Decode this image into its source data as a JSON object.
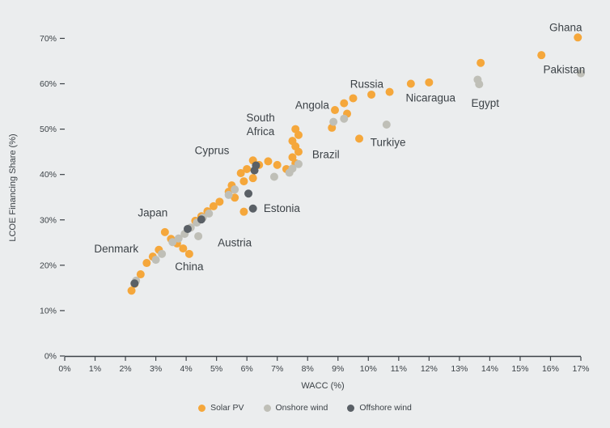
{
  "colors": {
    "background": "#EBEDEE",
    "text": "#3C4247",
    "axis": "#3C4247",
    "solar_pv": "#F5A73B",
    "onshore_wind": "#BFBFB7",
    "offshore_wind": "#5A6066"
  },
  "chart_data": {
    "type": "scatter",
    "title": "",
    "xlabel": "WACC (%)",
    "ylabel": "LCOE Financing Share (%)",
    "xlim": [
      0,
      17
    ],
    "ylim": [
      0,
      74
    ],
    "grid": false,
    "legend_position": "bottom",
    "x_ticks": [
      [
        0,
        "0%"
      ],
      [
        1,
        "1%"
      ],
      [
        2,
        "2%"
      ],
      [
        3,
        "3%"
      ],
      [
        4,
        "4%"
      ],
      [
        5,
        "5%"
      ],
      [
        6,
        "6%"
      ],
      [
        7,
        "7%"
      ],
      [
        8,
        "8%"
      ],
      [
        9,
        "9%"
      ],
      [
        10,
        "10%"
      ],
      [
        11,
        "11%"
      ],
      [
        12,
        "12%"
      ],
      [
        13,
        "13%"
      ],
      [
        14,
        "14%"
      ],
      [
        15,
        "15%"
      ],
      [
        16,
        "16%"
      ],
      [
        17,
        "17%"
      ]
    ],
    "y_ticks": [
      [
        0,
        "0%"
      ],
      [
        10,
        "10%"
      ],
      [
        20,
        "20%"
      ],
      [
        30,
        "30%"
      ],
      [
        40,
        "40%"
      ],
      [
        50,
        "50%"
      ],
      [
        60,
        "60%"
      ],
      [
        70,
        "70%"
      ]
    ],
    "series": [
      {
        "name": "Solar PV",
        "color": "#F5A73B",
        "points": [
          [
            2.2,
            14.4
          ],
          [
            2.3,
            15.9
          ],
          [
            2.5,
            18.0
          ],
          [
            2.7,
            20.5
          ],
          [
            2.9,
            21.9
          ],
          [
            3.1,
            23.4
          ],
          [
            3.3,
            27.3
          ],
          [
            3.5,
            25.8
          ],
          [
            3.7,
            24.8
          ],
          [
            3.9,
            23.7
          ],
          [
            4.1,
            22.5
          ],
          [
            4.3,
            29.8
          ],
          [
            4.5,
            30.8
          ],
          [
            4.7,
            31.9
          ],
          [
            4.9,
            33.0
          ],
          [
            5.1,
            34.0
          ],
          [
            5.4,
            36.2
          ],
          [
            5.5,
            37.6
          ],
          [
            5.6,
            34.9
          ],
          [
            5.8,
            40.3
          ],
          [
            5.9,
            31.8
          ],
          [
            5.9,
            38.5
          ],
          [
            6.0,
            41.2
          ],
          [
            6.2,
            39.2
          ],
          [
            6.2,
            43.1
          ],
          [
            6.4,
            42.1
          ],
          [
            6.7,
            42.9
          ],
          [
            7.0,
            42.1
          ],
          [
            7.3,
            41.2
          ],
          [
            7.5,
            43.8
          ],
          [
            7.5,
            47.4
          ],
          [
            7.6,
            42.5
          ],
          [
            7.6,
            46.2
          ],
          [
            7.6,
            50.0
          ],
          [
            7.7,
            45.0
          ],
          [
            7.7,
            48.7
          ],
          [
            8.8,
            50.3
          ],
          [
            8.9,
            54.2
          ],
          [
            9.2,
            55.7
          ],
          [
            9.3,
            53.4
          ],
          [
            9.5,
            56.8
          ],
          [
            9.7,
            47.9
          ],
          [
            10.1,
            57.6
          ],
          [
            10.7,
            58.2
          ],
          [
            11.4,
            60.0
          ],
          [
            12.0,
            60.3
          ],
          [
            13.7,
            64.6
          ],
          [
            15.7,
            66.3
          ],
          [
            16.9,
            70.2
          ]
        ]
      },
      {
        "name": "Onshore wind",
        "color": "#BFBFB7",
        "points": [
          [
            2.35,
            16.6
          ],
          [
            3.0,
            21.2
          ],
          [
            3.2,
            22.5
          ],
          [
            3.55,
            25.1
          ],
          [
            3.75,
            25.9
          ],
          [
            3.95,
            26.9
          ],
          [
            4.15,
            28.3
          ],
          [
            4.35,
            29.4
          ],
          [
            4.4,
            26.4
          ],
          [
            4.55,
            30.5
          ],
          [
            4.75,
            31.4
          ],
          [
            5.4,
            35.5
          ],
          [
            5.6,
            36.7
          ],
          [
            6.9,
            39.5
          ],
          [
            7.4,
            40.4
          ],
          [
            7.5,
            41.3
          ],
          [
            7.7,
            42.3
          ],
          [
            8.85,
            51.6
          ],
          [
            9.2,
            52.3
          ],
          [
            10.6,
            51.0
          ],
          [
            13.6,
            60.9
          ],
          [
            13.65,
            59.9
          ],
          [
            17.0,
            62.3
          ]
        ]
      },
      {
        "name": "Offshore wind",
        "color": "#5A6066",
        "points": [
          [
            2.3,
            16.0
          ],
          [
            4.05,
            28.0
          ],
          [
            4.5,
            30.1
          ],
          [
            6.05,
            35.8
          ],
          [
            6.2,
            32.5
          ],
          [
            6.25,
            40.9
          ],
          [
            6.3,
            42.0
          ]
        ]
      }
    ],
    "annotations": [
      {
        "label": "Ghana",
        "x": 16.5,
        "y": 72.4
      },
      {
        "label": "Pakistan",
        "x": 16.45,
        "y": 63.1
      },
      {
        "label": "Egypt",
        "x": 13.85,
        "y": 55.7
      },
      {
        "label": "Nicaragua",
        "x": 12.05,
        "y": 56.9
      },
      {
        "label": "Russia",
        "x": 9.95,
        "y": 59.9
      },
      {
        "label": "Angola",
        "x": 8.15,
        "y": 55.3
      },
      {
        "label": "Turkiye",
        "x": 10.65,
        "y": 47.1
      },
      {
        "label": "Brazil",
        "x": 8.6,
        "y": 44.4
      },
      {
        "label": "South\nAfrica",
        "x": 6.45,
        "y": 51.0
      },
      {
        "label": "Cyprus",
        "x": 4.85,
        "y": 45.3
      },
      {
        "label": "Estonia",
        "x": 7.15,
        "y": 32.5
      },
      {
        "label": "Japan",
        "x": 2.9,
        "y": 31.6
      },
      {
        "label": "Austria",
        "x": 5.6,
        "y": 25.0
      },
      {
        "label": "Denmark",
        "x": 1.7,
        "y": 23.6
      },
      {
        "label": "China",
        "x": 4.1,
        "y": 19.7
      }
    ]
  }
}
